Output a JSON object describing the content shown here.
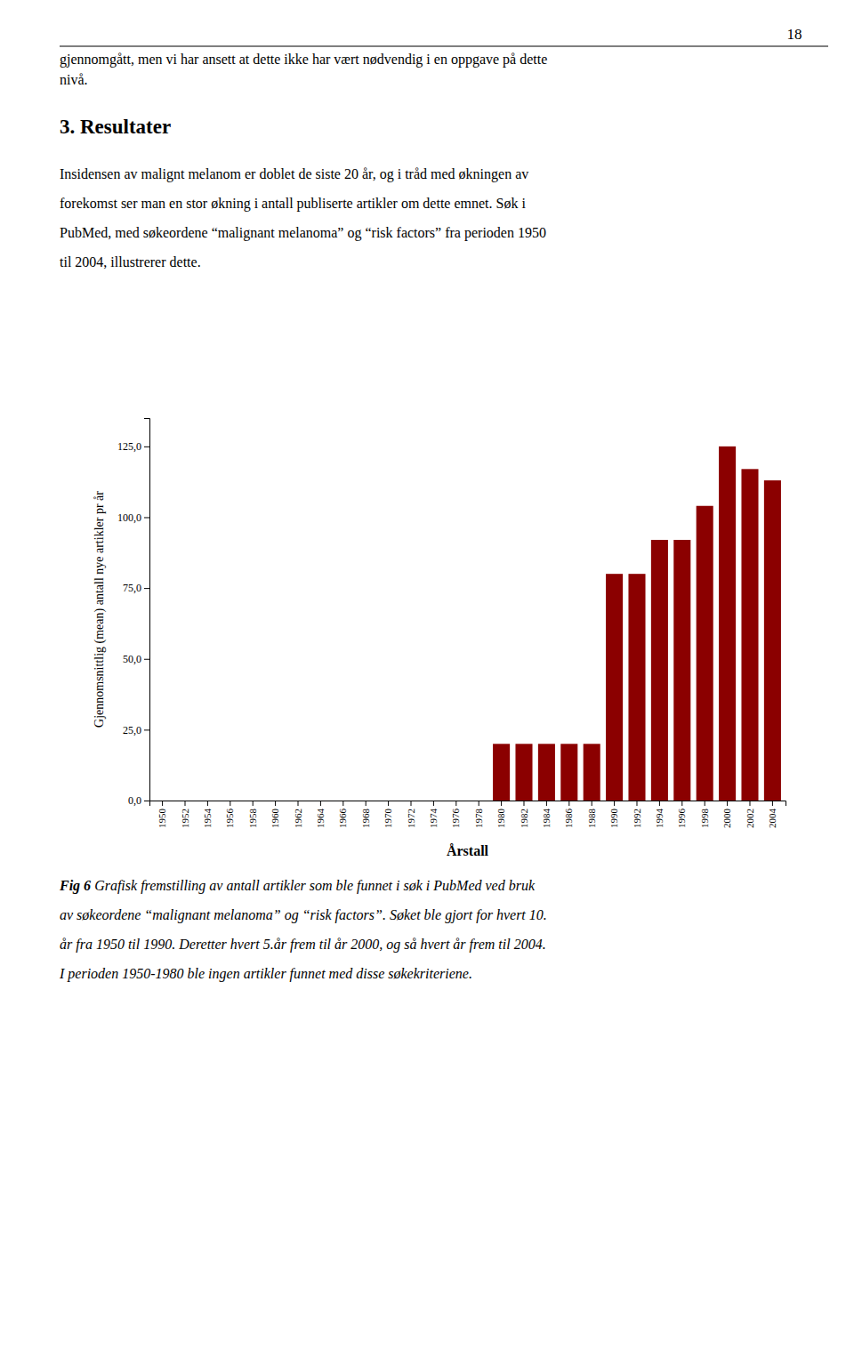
{
  "page_number": "18",
  "text_before": [
    "gjennomgått, men vi har ansett at dette ikke har vært nødvendig i en oppgave på dette",
    "nivå."
  ],
  "section_title": "3. Resultater",
  "body_text": [
    "Insidensen av malignt melanom er doblet de siste 20 år, og i tråd med økningen av",
    "forekomst ser man en stor økning i antall publiserte artikler om dette emnet. Søk i",
    "PubMed, med søkeordene “malignant melanoma” og “risk factors” fra perioden 1950",
    "til 2004, illustrerer dette."
  ],
  "caption_label": "Fig 6",
  "caption": [
    " Grafisk fremstilling av antall artikler som ble funnet i søk i PubMed ved bruk",
    "av søkeordene “malignant melanoma” og “risk factors”. Søket ble gjort for hvert 10.",
    "år fra 1950 til 1990. Deretter hvert 5.år frem til år 2000, og så hvert år frem til 2004.",
    "I perioden 1950-1980 ble ingen artikler funnet med disse søkekriteriene."
  ],
  "chart_data": {
    "type": "bar",
    "categories": [
      "1950",
      "1952",
      "1954",
      "1956",
      "1958",
      "1960",
      "1962",
      "1964",
      "1966",
      "1968",
      "1970",
      "1972",
      "1974",
      "1976",
      "1978",
      "1980",
      "1982",
      "1984",
      "1986",
      "1988",
      "1990",
      "1992",
      "1994",
      "1996",
      "1998",
      "2000",
      "2002",
      "2004"
    ],
    "values": [
      0,
      0,
      0,
      0,
      0,
      0,
      0,
      0,
      0,
      0,
      0,
      0,
      0,
      0,
      0,
      20,
      20,
      20,
      20,
      20,
      80,
      80,
      92,
      92,
      104,
      125,
      117,
      113
    ],
    "color": "#8B0000",
    "ylabel": "Gjennomsnittlig (mean) antall nye artikler pr år",
    "xlabel": "Årstall",
    "ylim": [
      0,
      135
    ],
    "yticks": [
      {
        "value": 0,
        "label": "0,0"
      },
      {
        "value": 25,
        "label": "25,0"
      },
      {
        "value": 50,
        "label": "50,0"
      },
      {
        "value": 75,
        "label": "75,0"
      },
      {
        "value": 100,
        "label": "100,0"
      },
      {
        "value": 125,
        "label": "125,0"
      }
    ],
    "grid": false
  }
}
